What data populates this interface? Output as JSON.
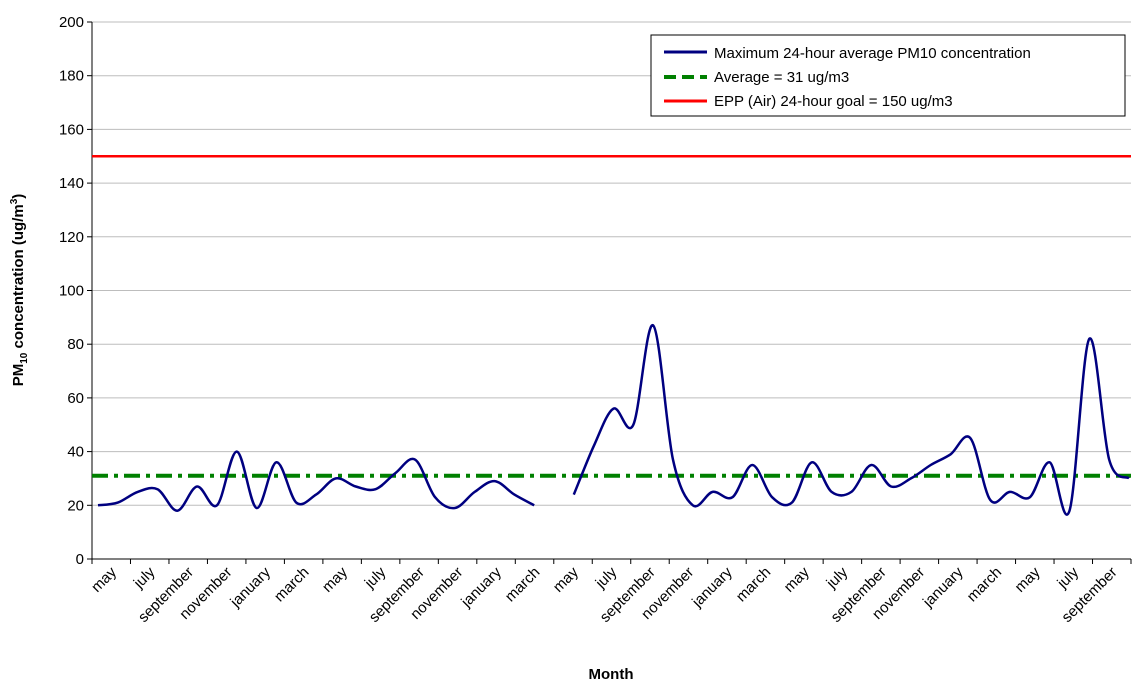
{
  "chart_data": {
    "type": "line",
    "xlabel": "Month",
    "ylabel_main": "PM",
    "ylabel_sub": "10",
    "ylabel_rest": " concentration (ug/m",
    "ylabel_sup": "3",
    "ylabel_end": ")",
    "ylim": [
      0,
      200
    ],
    "yticks": [
      0,
      20,
      40,
      60,
      80,
      100,
      120,
      140,
      160,
      180,
      200
    ],
    "grid": true,
    "legend_position": "top-right",
    "x_tick_labels": [
      "may",
      "july",
      "september",
      "november",
      "january",
      "march",
      "may",
      "july",
      "september",
      "november",
      "january",
      "march",
      "may",
      "july",
      "september",
      "november",
      "january",
      "march",
      "may",
      "july",
      "september",
      "november",
      "january",
      "march",
      "may",
      "july",
      "september"
    ],
    "series": [
      {
        "name": "Maximum 24-hour average PM10 concentration",
        "color": "#000080",
        "style": "solid",
        "values": [
          20,
          21,
          25,
          26,
          18,
          27,
          20,
          40,
          19,
          36,
          21,
          24,
          30,
          27,
          26,
          32,
          37,
          23,
          19,
          25,
          29,
          24,
          20,
          null,
          24,
          42,
          56,
          50,
          87,
          37,
          20,
          25,
          23,
          35,
          23,
          21,
          36,
          25,
          25,
          35,
          27,
          30,
          35,
          39,
          45,
          22,
          25,
          23,
          36,
          18,
          82,
          37,
          30
        ]
      },
      {
        "name": "Average = 31 ug/m3",
        "color": "#008000",
        "style": "dashdot",
        "constant": 31
      },
      {
        "name": "EPP (Air) 24-hour goal =  150 ug/m3",
        "color": "#ff0000",
        "style": "solid",
        "constant": 150
      }
    ]
  }
}
